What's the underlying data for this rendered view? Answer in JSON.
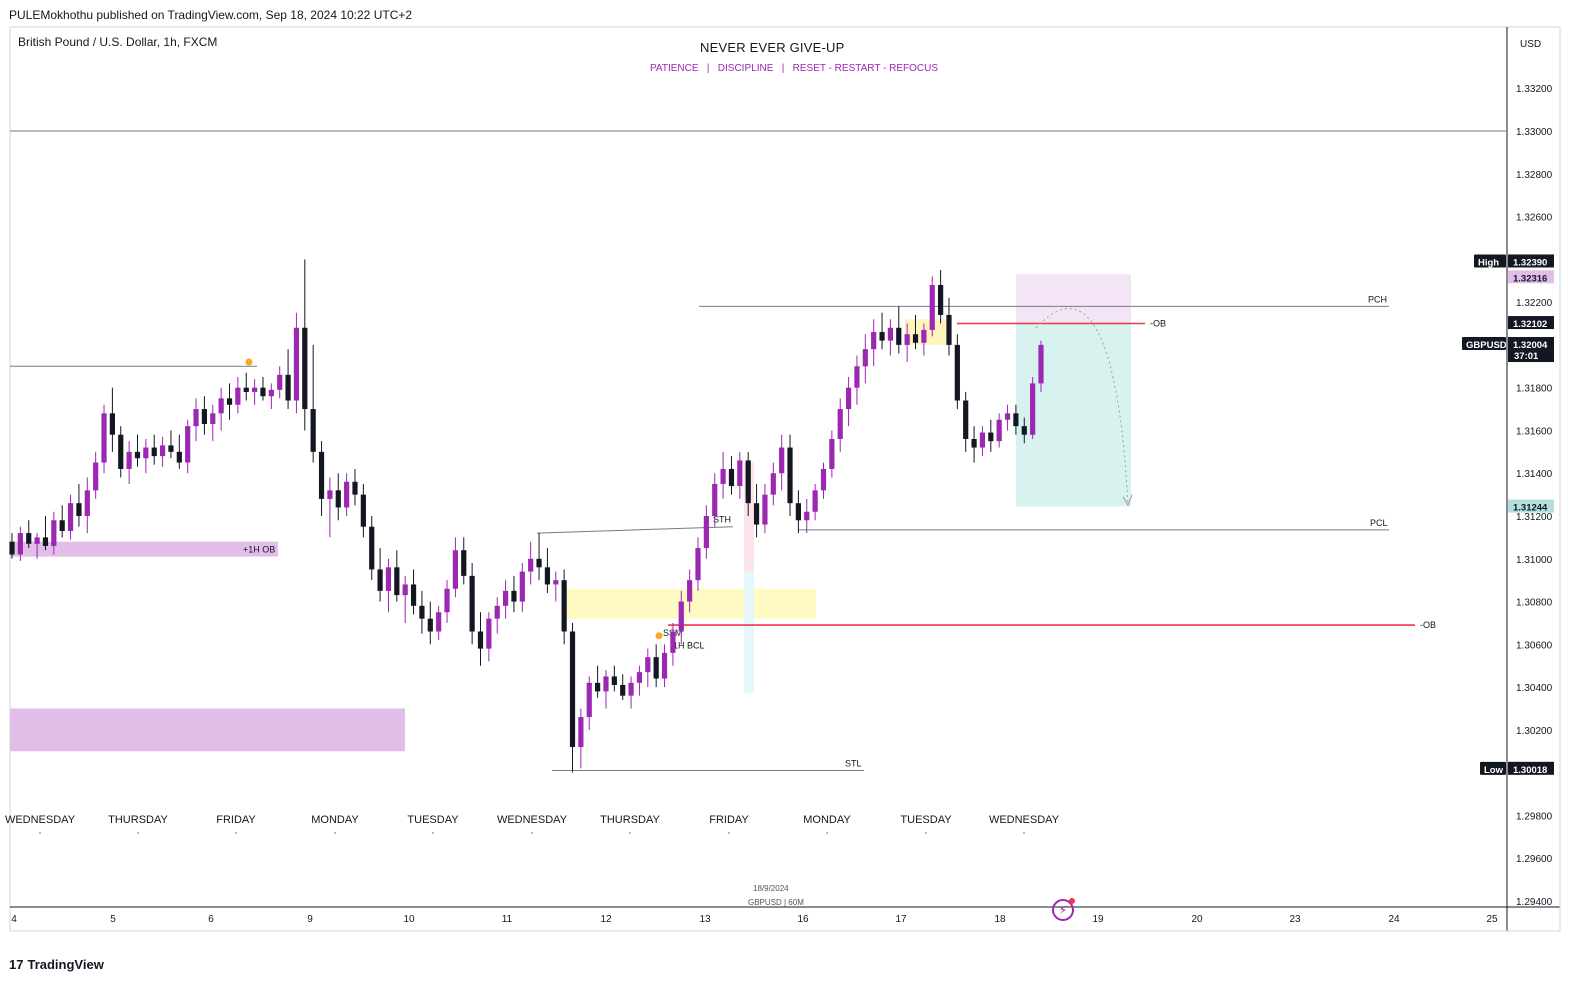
{
  "header": {
    "publisher": "PULEMokhothu published on TradingView.com, Sep 18, 2024 10:22 UTC+2"
  },
  "symbol": {
    "title": "British Pound / U.S. Dollar, 1h, FXCM"
  },
  "note": {
    "title": "NEVER EVER GIVE-UP",
    "subtitle": "PATIENCE   |   DISCIPLINE   |   RESET - RESTART - REFOCUS"
  },
  "currency": "USD",
  "watermark": {
    "date": "18/9/2024",
    "symbol": "GBPUSD | 60M"
  },
  "footer": {
    "logo": "TradingView",
    "logo_mark": "17"
  },
  "colors": {
    "bull": "#9c27b0",
    "bear": "#131722",
    "ob_line": "#f23645",
    "purple_zone": "#e1bee7",
    "yellow_zone": "#fff9c4",
    "green_zone": "#d8f3ef"
  },
  "chart_data": {
    "type": "candlestick",
    "symbol": "GBPUSD",
    "timeframe": "1h",
    "ylim": [
      1.2935,
      1.3355
    ],
    "y_ticks": [
      "1.33200",
      "1.33000",
      "1.32800",
      "1.32600",
      "1.32200",
      "1.31800",
      "1.31600",
      "1.31400",
      "1.31200",
      "1.31000",
      "1.30800",
      "1.30600",
      "1.30400",
      "1.30200",
      "1.29800",
      "1.29600",
      "1.29400"
    ],
    "x_ticks": [
      "4",
      "5",
      "6",
      "9",
      "10",
      "11",
      "12",
      "13",
      "16",
      "17",
      "18",
      "19",
      "20",
      "23",
      "24",
      "25"
    ],
    "day_labels": [
      "WEDNESDAY",
      "THURSDAY",
      "FRIDAY",
      "MONDAY",
      "TUESDAY",
      "WEDNESDAY",
      "THURSDAY",
      "FRIDAY",
      "MONDAY",
      "TUESDAY",
      "WEDNESDAY"
    ],
    "price_badges": [
      {
        "label": "High",
        "value": "1.32390",
        "price": 1.3239,
        "style": "dark"
      },
      {
        "label": "",
        "value": "1.32316",
        "price": 1.32316,
        "style": "purple"
      },
      {
        "label": "",
        "value": "1.32102",
        "price": 1.32102,
        "style": "dark"
      },
      {
        "label": "GBPUSD",
        "value": "1.32004",
        "sub": "37:01",
        "price": 1.32004,
        "style": "dark"
      },
      {
        "label": "",
        "value": "1.31244",
        "price": 1.31244,
        "style": "green"
      },
      {
        "label": "Low",
        "value": "1.30018",
        "price": 1.30018,
        "style": "dark"
      }
    ],
    "levels": [
      {
        "name": "PCH",
        "price": 1.3218
      },
      {
        "name": "PCL",
        "price": 1.31135
      },
      {
        "name": "STH",
        "price": 1.3112
      },
      {
        "name": "STL",
        "price": 1.3001
      },
      {
        "name": "-OB",
        "price": 1.321
      },
      {
        "name": "-OB",
        "price": 1.3069
      },
      {
        "name": "+1H OB",
        "price": 1.3105
      }
    ],
    "annotations": {
      "ob_label_top": "-OB",
      "ob_label_low": "-OB",
      "plus_ob": "+1H OB",
      "pch": "PCH",
      "pcl": "PCL",
      "sth": "STH",
      "stl": "STL",
      "ssm": "SSM",
      "bcl": "1H BCL"
    },
    "candles": [
      [
        1.3108,
        1.3112,
        1.31,
        1.3102
      ],
      [
        1.3102,
        1.3115,
        1.3099,
        1.3112
      ],
      [
        1.3112,
        1.3118,
        1.3105,
        1.3107
      ],
      [
        1.3107,
        1.3112,
        1.31,
        1.311
      ],
      [
        1.311,
        1.312,
        1.3104,
        1.3106
      ],
      [
        1.3106,
        1.3122,
        1.3102,
        1.3118
      ],
      [
        1.3118,
        1.3125,
        1.311,
        1.3113
      ],
      [
        1.3113,
        1.313,
        1.3109,
        1.3126
      ],
      [
        1.3126,
        1.3135,
        1.3115,
        1.312
      ],
      [
        1.312,
        1.3138,
        1.3112,
        1.3132
      ],
      [
        1.3132,
        1.315,
        1.3128,
        1.3145
      ],
      [
        1.3145,
        1.3172,
        1.314,
        1.3168
      ],
      [
        1.3168,
        1.318,
        1.315,
        1.3158
      ],
      [
        1.3158,
        1.3162,
        1.3138,
        1.3142
      ],
      [
        1.3142,
        1.3155,
        1.3135,
        1.315
      ],
      [
        1.315,
        1.3158,
        1.3143,
        1.3147
      ],
      [
        1.3147,
        1.3156,
        1.314,
        1.3152
      ],
      [
        1.3152,
        1.3158,
        1.3144,
        1.3148
      ],
      [
        1.3148,
        1.3157,
        1.3143,
        1.3153
      ],
      [
        1.3153,
        1.316,
        1.3147,
        1.315
      ],
      [
        1.315,
        1.3158,
        1.3142,
        1.3145
      ],
      [
        1.3145,
        1.3165,
        1.314,
        1.3162
      ],
      [
        1.3162,
        1.3175,
        1.3155,
        1.317
      ],
      [
        1.317,
        1.3176,
        1.3158,
        1.3163
      ],
      [
        1.3163,
        1.3172,
        1.3155,
        1.3168
      ],
      [
        1.3168,
        1.318,
        1.316,
        1.3175
      ],
      [
        1.3175,
        1.3182,
        1.3165,
        1.3172
      ],
      [
        1.3172,
        1.3185,
        1.3168,
        1.318
      ],
      [
        1.318,
        1.3187,
        1.3174,
        1.3178
      ],
      [
        1.3178,
        1.3184,
        1.3172,
        1.318
      ],
      [
        1.318,
        1.3185,
        1.3174,
        1.3176
      ],
      [
        1.3176,
        1.3182,
        1.317,
        1.3179
      ],
      [
        1.3179,
        1.319,
        1.3175,
        1.3186
      ],
      [
        1.3186,
        1.3198,
        1.317,
        1.3174
      ],
      [
        1.3174,
        1.3215,
        1.3168,
        1.3208
      ],
      [
        1.3208,
        1.324,
        1.316,
        1.317
      ],
      [
        1.317,
        1.32,
        1.3145,
        1.315
      ],
      [
        1.315,
        1.3155,
        1.312,
        1.3128
      ],
      [
        1.3128,
        1.3138,
        1.311,
        1.3132
      ],
      [
        1.3132,
        1.314,
        1.3118,
        1.3124
      ],
      [
        1.3124,
        1.314,
        1.312,
        1.3136
      ],
      [
        1.3136,
        1.3142,
        1.3125,
        1.313
      ],
      [
        1.313,
        1.3135,
        1.311,
        1.3115
      ],
      [
        1.3115,
        1.312,
        1.309,
        1.3095
      ],
      [
        1.3095,
        1.3105,
        1.308,
        1.3085
      ],
      [
        1.3085,
        1.31,
        1.3075,
        1.3096
      ],
      [
        1.3096,
        1.3104,
        1.308,
        1.3083
      ],
      [
        1.3083,
        1.3092,
        1.307,
        1.3088
      ],
      [
        1.3088,
        1.3095,
        1.3074,
        1.3078
      ],
      [
        1.3078,
        1.3085,
        1.3065,
        1.3072
      ],
      [
        1.3072,
        1.308,
        1.306,
        1.3066
      ],
      [
        1.3066,
        1.3078,
        1.3062,
        1.3075
      ],
      [
        1.3075,
        1.309,
        1.307,
        1.3086
      ],
      [
        1.3086,
        1.311,
        1.3082,
        1.3104
      ],
      [
        1.3104,
        1.311,
        1.3088,
        1.3092
      ],
      [
        1.3092,
        1.3098,
        1.306,
        1.3066
      ],
      [
        1.3066,
        1.3075,
        1.305,
        1.3058
      ],
      [
        1.3058,
        1.3075,
        1.3052,
        1.3072
      ],
      [
        1.3072,
        1.3082,
        1.3065,
        1.3078
      ],
      [
        1.3078,
        1.309,
        1.3072,
        1.3085
      ],
      [
        1.3085,
        1.3092,
        1.3075,
        1.308
      ],
      [
        1.308,
        1.3098,
        1.3075,
        1.3094
      ],
      [
        1.3094,
        1.3108,
        1.3088,
        1.31
      ],
      [
        1.31,
        1.3112,
        1.309,
        1.3096
      ],
      [
        1.3096,
        1.3105,
        1.3084,
        1.3088
      ],
      [
        1.3088,
        1.3094,
        1.308,
        1.309
      ],
      [
        1.309,
        1.3095,
        1.306,
        1.3066
      ],
      [
        1.3066,
        1.307,
        1.3,
        1.3012
      ],
      [
        1.3012,
        1.303,
        1.3002,
        1.3026
      ],
      [
        1.3026,
        1.3045,
        1.302,
        1.3042
      ],
      [
        1.3042,
        1.305,
        1.3035,
        1.3038
      ],
      [
        1.3038,
        1.3048,
        1.303,
        1.3045
      ],
      [
        1.3045,
        1.305,
        1.3038,
        1.3041
      ],
      [
        1.3041,
        1.3046,
        1.3034,
        1.3036
      ],
      [
        1.3036,
        1.3045,
        1.303,
        1.3042
      ],
      [
        1.3042,
        1.305,
        1.3036,
        1.3047
      ],
      [
        1.3047,
        1.3058,
        1.304,
        1.3054
      ],
      [
        1.3054,
        1.306,
        1.304,
        1.3044
      ],
      [
        1.3044,
        1.306,
        1.304,
        1.3056
      ],
      [
        1.3056,
        1.307,
        1.305,
        1.3066
      ],
      [
        1.3066,
        1.3085,
        1.306,
        1.308
      ],
      [
        1.308,
        1.3095,
        1.3075,
        1.309
      ],
      [
        1.309,
        1.311,
        1.3085,
        1.3105
      ],
      [
        1.3105,
        1.3125,
        1.31,
        1.312
      ],
      [
        1.312,
        1.314,
        1.3115,
        1.3135
      ],
      [
        1.3135,
        1.315,
        1.3128,
        1.3142
      ],
      [
        1.3142,
        1.3148,
        1.313,
        1.3134
      ],
      [
        1.3134,
        1.315,
        1.3128,
        1.3146
      ],
      [
        1.3146,
        1.315,
        1.312,
        1.3126
      ],
      [
        1.3126,
        1.3135,
        1.311,
        1.3116
      ],
      [
        1.3116,
        1.3135,
        1.3112,
        1.313
      ],
      [
        1.313,
        1.3145,
        1.3125,
        1.314
      ],
      [
        1.314,
        1.3158,
        1.3132,
        1.3152
      ],
      [
        1.3152,
        1.3158,
        1.312,
        1.3126
      ],
      [
        1.3126,
        1.3132,
        1.3112,
        1.3118
      ],
      [
        1.3118,
        1.3128,
        1.3112,
        1.3122
      ],
      [
        1.3122,
        1.3135,
        1.3118,
        1.3132
      ],
      [
        1.3132,
        1.3145,
        1.3128,
        1.3142
      ],
      [
        1.3142,
        1.316,
        1.3138,
        1.3156
      ],
      [
        1.3156,
        1.3175,
        1.315,
        1.317
      ],
      [
        1.317,
        1.3185,
        1.3162,
        1.318
      ],
      [
        1.318,
        1.3195,
        1.3172,
        1.319
      ],
      [
        1.319,
        1.3205,
        1.3182,
        1.3198
      ],
      [
        1.3198,
        1.3212,
        1.319,
        1.3206
      ],
      [
        1.3206,
        1.3215,
        1.3198,
        1.3202
      ],
      [
        1.3202,
        1.3212,
        1.3195,
        1.3208
      ],
      [
        1.3208,
        1.3218,
        1.3196,
        1.32
      ],
      [
        1.32,
        1.321,
        1.3192,
        1.3205
      ],
      [
        1.3205,
        1.3214,
        1.3198,
        1.3201
      ],
      [
        1.3201,
        1.321,
        1.3195,
        1.3207
      ],
      [
        1.3207,
        1.3232,
        1.3204,
        1.3228
      ],
      [
        1.3228,
        1.3235,
        1.321,
        1.3214
      ],
      [
        1.3214,
        1.3222,
        1.3195,
        1.32
      ],
      [
        1.32,
        1.3205,
        1.317,
        1.3174
      ],
      [
        1.3174,
        1.3178,
        1.315,
        1.3156
      ],
      [
        1.3156,
        1.3162,
        1.3145,
        1.3152
      ],
      [
        1.3152,
        1.3162,
        1.3148,
        1.3159
      ],
      [
        1.3159,
        1.3165,
        1.315,
        1.3155
      ],
      [
        1.3155,
        1.3168,
        1.3152,
        1.3165
      ],
      [
        1.3165,
        1.3172,
        1.316,
        1.3168
      ],
      [
        1.3168,
        1.3172,
        1.3158,
        1.3162
      ],
      [
        1.3162,
        1.3166,
        1.3154,
        1.3158
      ],
      [
        1.3158,
        1.3185,
        1.3156,
        1.3182
      ],
      [
        1.3182,
        1.3202,
        1.3178,
        1.32
      ]
    ]
  }
}
